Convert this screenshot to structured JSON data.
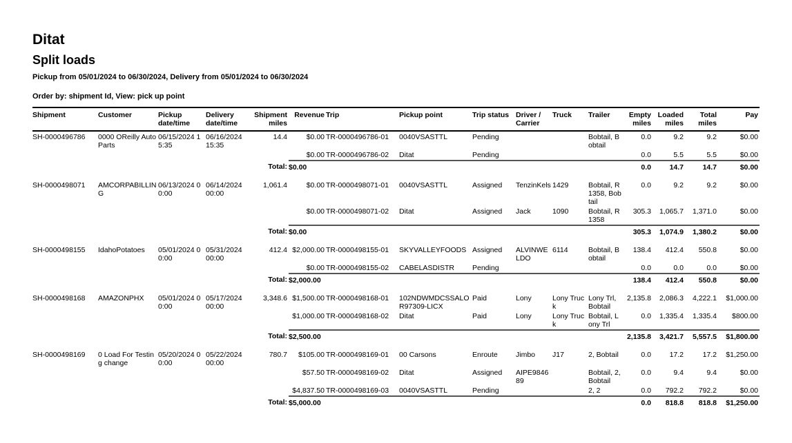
{
  "report": {
    "company": "Ditat",
    "title": "Split loads",
    "filter": "Pickup from 05/01/2024 to 06/30/2024, Delivery from 05/01/2024 to 06/30/2024",
    "order": "Order by: shipment Id, View: pick up point"
  },
  "columns": [
    "Shipment",
    "Customer",
    "Pickup date/time",
    "Delivery date/time",
    "Shipment miles",
    "Revenue",
    "Trip",
    "Pickup point",
    "Trip status",
    "Driver / Carrier",
    "Truck",
    "Trailer",
    "Empty miles",
    "Loaded miles",
    "Total miles",
    "Pay"
  ],
  "total_label": "Total:",
  "groups": [
    {
      "shipment": "SH-0000496786",
      "customer": "0000 OReilly Auto Parts",
      "pickup": "06/15/2024 15:35",
      "delivery": "06/16/2024 15:35",
      "miles": "14.4",
      "trips": [
        {
          "revenue": "$0.00",
          "trip": "TR-0000496786-01",
          "point": "0040VSASTTL",
          "status": "Pending",
          "driver": "",
          "truck": "",
          "trailer": "Bobtail, Bobtail",
          "empty": "0.0",
          "loaded": "9.2",
          "total": "9.2",
          "pay": "$0.00"
        },
        {
          "revenue": "$0.00",
          "trip": "TR-0000496786-02",
          "point": "Ditat",
          "status": "Pending",
          "driver": "",
          "truck": "",
          "trailer": "",
          "empty": "0.0",
          "loaded": "5.5",
          "total": "5.5",
          "pay": "$0.00"
        }
      ],
      "totals": {
        "revenue": "$0.00",
        "empty": "0.0",
        "loaded": "14.7",
        "total": "14.7",
        "pay": "$0.00"
      }
    },
    {
      "shipment": "SH-0000498071",
      "customer": "AMCORPABILLING",
      "pickup": "06/13/2024 00:00",
      "delivery": "06/14/2024 00:00",
      "miles": "1,061.4",
      "trips": [
        {
          "revenue": "$0.00",
          "trip": "TR-0000498071-01",
          "point": "0040VSASTTL",
          "status": "Assigned",
          "driver": "TenzinKels",
          "truck": "1429",
          "trailer": "Bobtail, R1358, Bobtail",
          "empty": "0.0",
          "loaded": "9.2",
          "total": "9.2",
          "pay": "$0.00"
        },
        {
          "revenue": "$0.00",
          "trip": "TR-0000498071-02",
          "point": "Ditat",
          "status": "Assigned",
          "driver": "Jack",
          "truck": "1090",
          "trailer": "Bobtail, R1358",
          "empty": "305.3",
          "loaded": "1,065.7",
          "total": "1,371.0",
          "pay": "$0.00"
        }
      ],
      "totals": {
        "revenue": "$0.00",
        "empty": "305.3",
        "loaded": "1,074.9",
        "total": "1,380.2",
        "pay": "$0.00"
      }
    },
    {
      "shipment": "SH-0000498155",
      "customer": "IdahoPotatoes",
      "pickup": "05/01/2024 00:00",
      "delivery": "05/31/2024 00:00",
      "miles": "412.4",
      "trips": [
        {
          "revenue": "$2,000.00",
          "trip": "TR-0000498155-01",
          "point": "SKYVALLEYFOODS",
          "status": "Assigned",
          "driver": "ALVINWELDO",
          "truck": "6114",
          "trailer": "Bobtail, Bobtail",
          "empty": "138.4",
          "loaded": "412.4",
          "total": "550.8",
          "pay": "$0.00"
        },
        {
          "revenue": "$0.00",
          "trip": "TR-0000498155-02",
          "point": "CABELASDISTR",
          "status": "Pending",
          "driver": "",
          "truck": "",
          "trailer": "",
          "empty": "0.0",
          "loaded": "0.0",
          "total": "0.0",
          "pay": "$0.00"
        }
      ],
      "totals": {
        "revenue": "$2,000.00",
        "empty": "138.4",
        "loaded": "412.4",
        "total": "550.8",
        "pay": "$0.00"
      }
    },
    {
      "shipment": "SH-0000498168",
      "customer": "AMAZONPHX",
      "pickup": "05/01/2024 00:00",
      "delivery": "05/17/2024 00:00",
      "miles": "3,348.6",
      "trips": [
        {
          "revenue": "$1,500.00",
          "trip": "TR-0000498168-01",
          "point": "102NDWMDCSSALOR97309-LICX",
          "status": "Paid",
          "driver": "Lony",
          "truck": "Lony Truck",
          "trailer": "Lony Trl, Bobtail",
          "empty": "2,135.8",
          "loaded": "2,086.3",
          "total": "4,222.1",
          "pay": "$1,000.00"
        },
        {
          "revenue": "$1,000.00",
          "trip": "TR-0000498168-02",
          "point": "Ditat",
          "status": "Paid",
          "driver": "Lony",
          "truck": "Lony Truck",
          "trailer": "Bobtail, Lony Trl",
          "empty": "0.0",
          "loaded": "1,335.4",
          "total": "1,335.4",
          "pay": "$800.00"
        }
      ],
      "totals": {
        "revenue": "$2,500.00",
        "empty": "2,135.8",
        "loaded": "3,421.7",
        "total": "5,557.5",
        "pay": "$1,800.00"
      }
    },
    {
      "shipment": "SH-0000498169",
      "customer": "0 Load For Testing change",
      "pickup": "05/20/2024 00:00",
      "delivery": "05/22/2024 00:00",
      "miles": "780.7",
      "trips": [
        {
          "revenue": "$105.00",
          "trip": "TR-0000498169-01",
          "point": "00 Carsons",
          "status": "Enroute",
          "driver": "Jimbo",
          "truck": "J17",
          "trailer": "2, Bobtail",
          "empty": "0.0",
          "loaded": "17.2",
          "total": "17.2",
          "pay": "$1,250.00"
        },
        {
          "revenue": "$57.50",
          "trip": "TR-0000498169-02",
          "point": "Ditat",
          "status": "Assigned",
          "driver": "AIPE984689",
          "truck": "",
          "trailer": "Bobtail, 2, Bobtail",
          "empty": "0.0",
          "loaded": "9.4",
          "total": "9.4",
          "pay": "$0.00"
        },
        {
          "revenue": "$4,837.50",
          "trip": "TR-0000498169-03",
          "point": "0040VSASTTL",
          "status": "Pending",
          "driver": "",
          "truck": "",
          "trailer": "2, 2",
          "empty": "0.0",
          "loaded": "792.2",
          "total": "792.2",
          "pay": "$0.00"
        }
      ],
      "totals": {
        "revenue": "$5,000.00",
        "empty": "0.0",
        "loaded": "818.8",
        "total": "818.8",
        "pay": "$1,250.00"
      }
    }
  ]
}
